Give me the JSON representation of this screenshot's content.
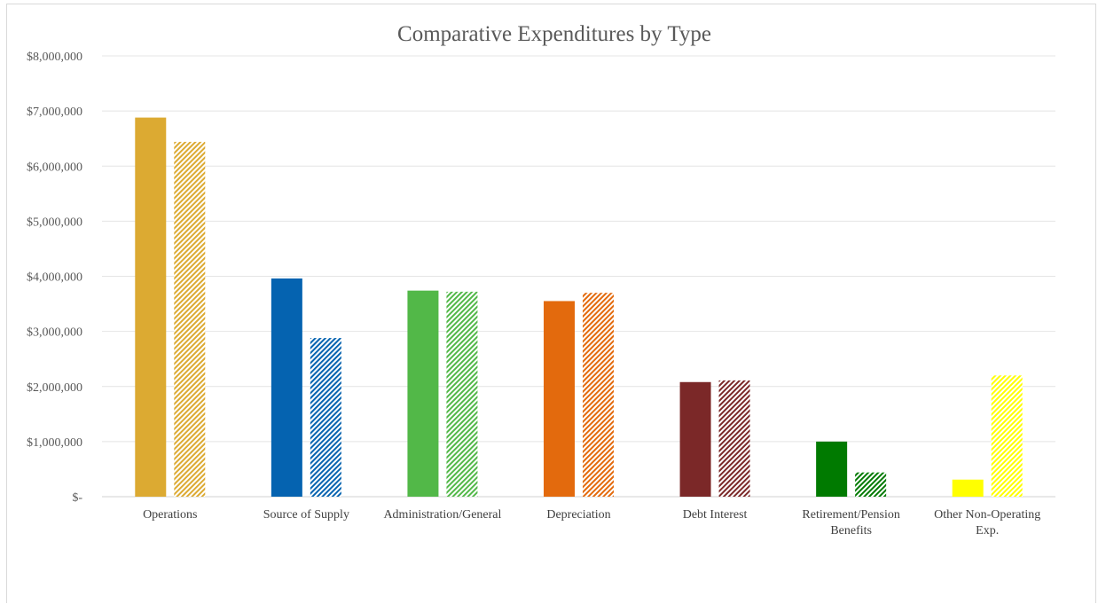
{
  "chart_data": {
    "type": "bar",
    "title": "Comparative Expenditures by Type",
    "categories": [
      [
        "Operations"
      ],
      [
        "Source of Supply"
      ],
      [
        "Administration/General"
      ],
      [
        "Depreciation"
      ],
      [
        "Debt Interest"
      ],
      [
        "Retirement/Pension",
        "Benefits"
      ],
      [
        "Other Non-Operating",
        "Exp."
      ]
    ],
    "series": [
      {
        "pattern": "solid",
        "values": [
          6880000,
          3960000,
          3740000,
          3550000,
          2080000,
          1000000,
          310000
        ]
      },
      {
        "pattern": "hatched",
        "values": [
          6440000,
          2880000,
          3720000,
          3700000,
          2110000,
          440000,
          2200000
        ]
      }
    ],
    "category_colors": [
      "#DCAA32",
      "#0563B0",
      "#52B848",
      "#E36A0D",
      "#7B2828",
      "#007A00",
      "#FFFF00"
    ],
    "ylim": [
      0,
      8000000
    ],
    "y_ticks": [
      "$-",
      "$1,000,000",
      "$2,000,000",
      "$3,000,000",
      "$4,000,000",
      "$5,000,000",
      "$6,000,000",
      "$7,000,000",
      "$8,000,000"
    ],
    "grid": true,
    "legend": "none"
  }
}
